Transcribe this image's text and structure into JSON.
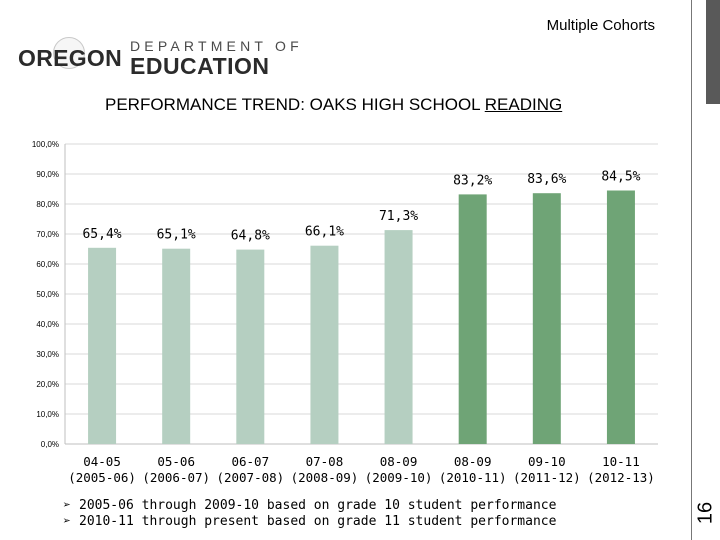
{
  "header": {
    "cohort_label": "Multiple Cohorts",
    "logo_department": "DEPARTMENT OF",
    "logo_education": "EDUCATION",
    "logo_oregon": "OREGON",
    "title_prefix": "PERFORMANCE TREND: OAKS HIGH SCHOOL ",
    "title_underlined": "READING"
  },
  "colors": {
    "light_bar": "#b5cfc1",
    "dark_bar": "#6fa476",
    "accent_bar": "#595959"
  },
  "chart_data": {
    "type": "bar",
    "categories": [
      {
        "line1": "04-05",
        "line2": "(2005-06)"
      },
      {
        "line1": "05-06",
        "line2": "(2006-07)"
      },
      {
        "line1": "06-07",
        "line2": "(2007-08)"
      },
      {
        "line1": "07-08",
        "line2": "(2008-09)"
      },
      {
        "line1": "08-09",
        "line2": "(2009-10)"
      },
      {
        "line1": "08-09",
        "line2": "(2010-11)"
      },
      {
        "line1": "09-10",
        "line2": "(2011-12)"
      },
      {
        "line1": "10-11",
        "line2": "(2012-13)"
      }
    ],
    "values": [
      65.4,
      65.1,
      64.8,
      66.1,
      71.3,
      83.2,
      83.6,
      84.5
    ],
    "value_labels": [
      "65,4%",
      "65,1%",
      "64,8%",
      "66,1%",
      "71,3%",
      "83,2%",
      "83,6%",
      "84,5%"
    ],
    "bar_groups": [
      "grade10",
      "grade10",
      "grade10",
      "grade10",
      "grade10",
      "grade11",
      "grade11",
      "grade11"
    ],
    "ylim": [
      0,
      100
    ],
    "yticks": [
      "0,0%",
      "10,0%",
      "20,0%",
      "30,0%",
      "40,0%",
      "50,0%",
      "60,0%",
      "70,0%",
      "80,0%",
      "90,0%",
      "100,0%"
    ],
    "grid": true,
    "title": "",
    "xlabel": "",
    "ylabel": ""
  },
  "notes": [
    "2005-06 through 2009-10 based on grade 10 student performance",
    "2010-11 through present based on grade 11 student performance"
  ],
  "page_number": "16"
}
